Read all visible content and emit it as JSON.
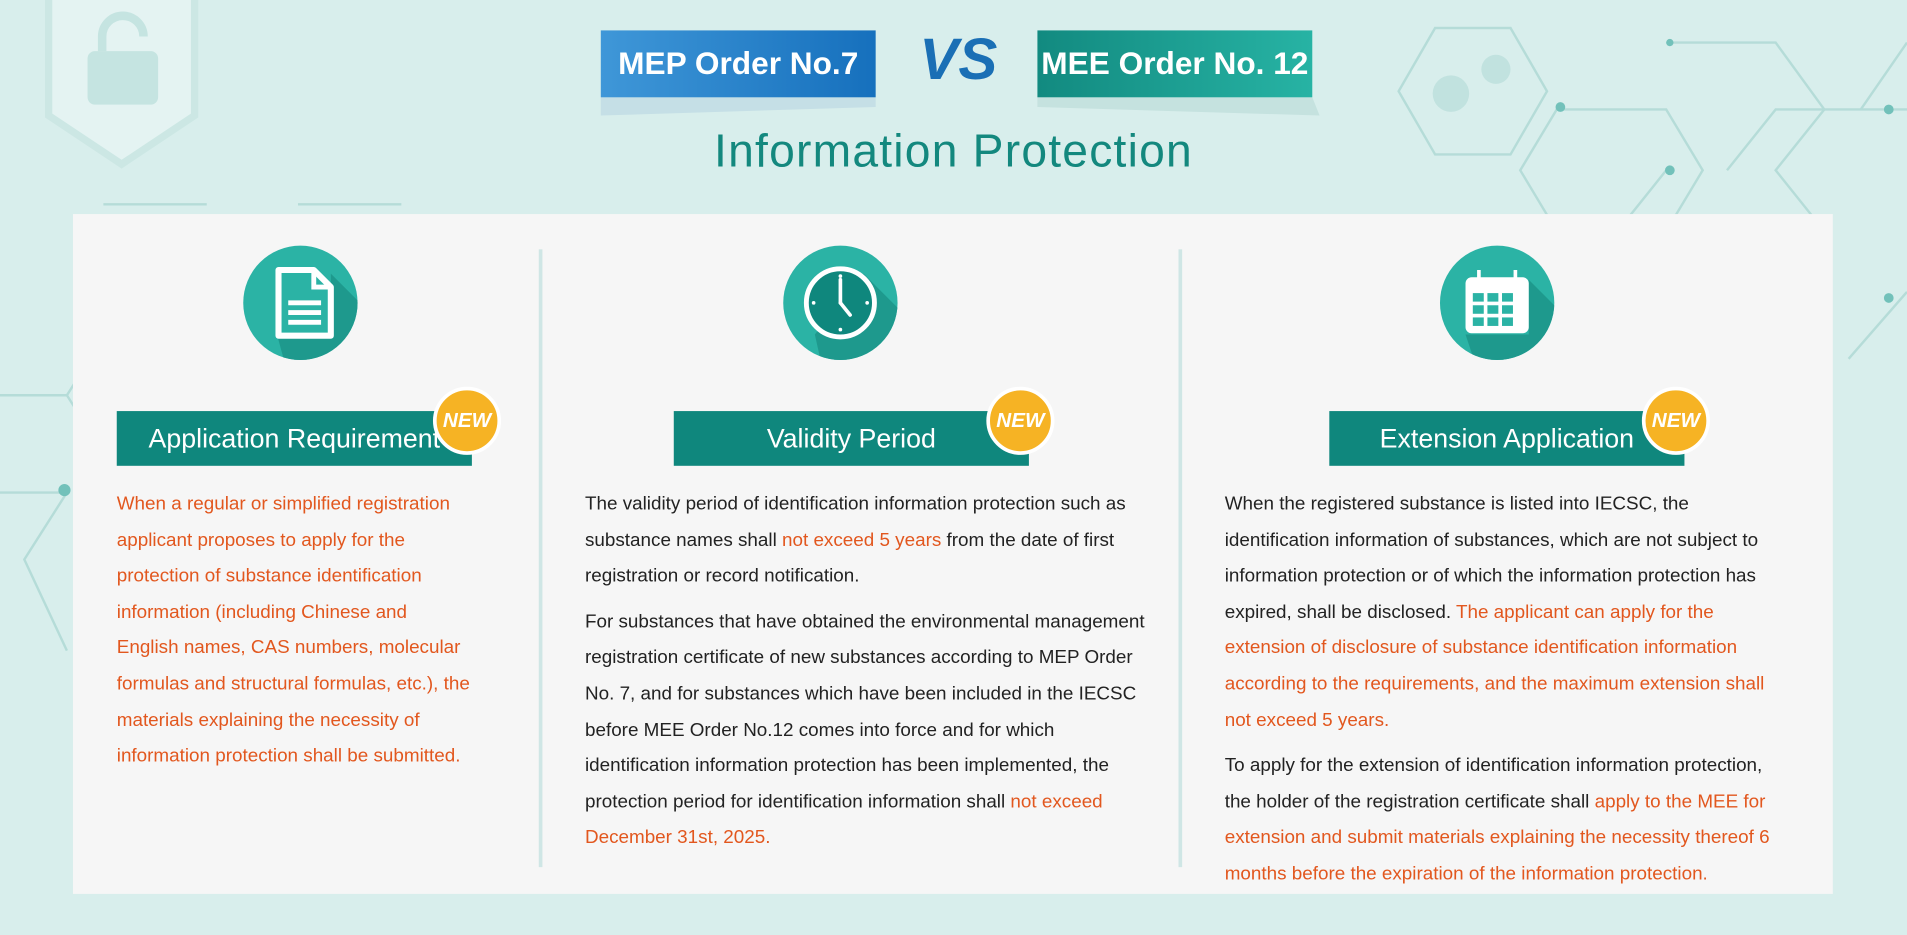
{
  "header": {
    "left_badge": "MEP Order No.7",
    "vs": "VS",
    "right_badge": "MEE Order No. 12",
    "title": "Information Protection"
  },
  "columns": [
    {
      "title": "Application Requirement",
      "badge": "NEW",
      "paragraphs": [
        [
          {
            "text": "When a regular or simplified registration applicant proposes to apply for the protection of substance identification information (including Chinese and English names, CAS numbers, molecular formulas and structural formulas, etc.), the materials explaining the necessity of information protection shall be submitted.",
            "color": "#e2571e"
          }
        ]
      ]
    },
    {
      "title": "Validity Period",
      "badge": "NEW",
      "paragraphs": [
        [
          {
            "text": "The validity period of identification information protection such as substance names shall ",
            "color": "#222222"
          },
          {
            "text": "not exceed 5 years",
            "color": "#e2571e"
          },
          {
            "text": " from the date of first registration or record notification.",
            "color": "#222222"
          }
        ],
        [
          {
            "text": "For substances that have obtained the environmental management registration certificate of new substances according to MEP Order No. 7, and for substances which have been included in the IECSC before MEE Order No.12 comes into force and for which identification information protection has been implemented, the protection period for identification information shall ",
            "color": "#222222"
          },
          {
            "text": "not exceed December 31st, 2025.",
            "color": "#e2571e"
          }
        ]
      ]
    },
    {
      "title": "Extension Application",
      "badge": "NEW",
      "paragraphs": [
        [
          {
            "text": "When the registered substance is listed into IECSC, the identification information of substances, which are not subject to information protection or of which the information protection has expired, shall be disclosed. ",
            "color": "#222222"
          },
          {
            "text": "The applicant can apply for the extension of disclosure of substance identification information according to the requirements, and the maximum extension shall not exceed 5 years.",
            "color": "#e2571e"
          }
        ],
        [
          {
            "text": "To apply for the extension of identification information protection, the holder of the registration certificate shall ",
            "color": "#222222"
          },
          {
            "text": "apply to the MEE for extension and submit materials explaining the necessity thereof 6 months before the expiration of the information protection.",
            "color": "#e2571e"
          }
        ]
      ]
    }
  ]
}
